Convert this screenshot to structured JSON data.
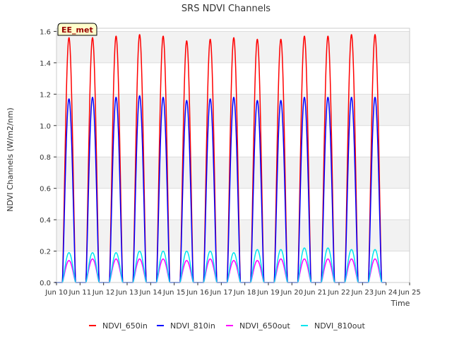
{
  "chart_data": {
    "type": "line",
    "title": "SRS NDVI Channels",
    "xlabel": "Time",
    "ylabel": "NDVI Channels (W/m2/nm)",
    "badge": "EE_met",
    "x_tick_labels": [
      "Jun 10",
      "Jun 11",
      "Jun 12",
      "Jun 13",
      "Jun 14",
      "Jun 15",
      "Jun 16",
      "Jun 17",
      "Jun 18",
      "Jun 19",
      "Jun 20",
      "Jun 21",
      "Jun 22",
      "Jun 23",
      "Jun 24",
      "Jun 25"
    ],
    "x_tick_days": [
      10,
      11,
      12,
      13,
      14,
      15,
      16,
      17,
      18,
      19,
      20,
      21,
      22,
      23,
      24,
      25
    ],
    "xlim_days": [
      10,
      25
    ],
    "y_ticks": [
      0.0,
      0.2,
      0.4,
      0.6,
      0.8,
      1.0,
      1.2,
      1.4,
      1.6
    ],
    "y_tick_labels": [
      "0.0",
      "0.2",
      "0.4",
      "0.6",
      "0.8",
      "1.0",
      "1.2",
      "1.4",
      "1.6"
    ],
    "ylim": [
      0,
      1.62
    ],
    "grid": true,
    "legend_position": "bottom",
    "daylight_start_frac": 0.25,
    "daylight_end_frac": 0.81,
    "peak_day_offset": 0.53,
    "days": [
      10,
      11,
      12,
      13,
      14,
      15,
      16,
      17,
      18,
      19,
      20,
      21,
      22,
      23
    ],
    "series": [
      {
        "name": "NDVI_650in",
        "color": "#ff0000",
        "peaks": [
          1.56,
          1.56,
          1.57,
          1.58,
          1.57,
          1.54,
          1.55,
          1.56,
          1.55,
          1.55,
          1.57,
          1.57,
          1.58,
          1.58
        ]
      },
      {
        "name": "NDVI_810in",
        "color": "#0000ff",
        "peaks": [
          1.17,
          1.18,
          1.18,
          1.19,
          1.18,
          1.16,
          1.17,
          1.18,
          1.16,
          1.16,
          1.18,
          1.18,
          1.18,
          1.18
        ]
      },
      {
        "name": "NDVI_650out",
        "color": "#ff00ff",
        "peaks": [
          0.14,
          0.15,
          0.15,
          0.15,
          0.15,
          0.14,
          0.15,
          0.14,
          0.14,
          0.15,
          0.15,
          0.15,
          0.15,
          0.15
        ]
      },
      {
        "name": "NDVI_810out",
        "color": "#00e5ee",
        "peaks": [
          0.19,
          0.19,
          0.19,
          0.2,
          0.2,
          0.2,
          0.2,
          0.19,
          0.21,
          0.21,
          0.22,
          0.22,
          0.21,
          0.21
        ]
      }
    ]
  }
}
